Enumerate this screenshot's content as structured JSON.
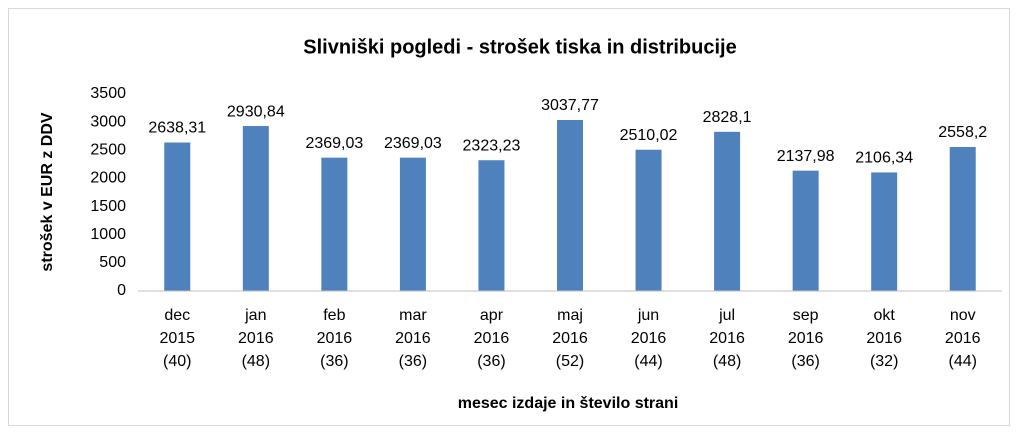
{
  "chart_data": {
    "type": "bar",
    "title": "Slivniški pogledi - strošek tiska in distribucije",
    "y_label": "strošek v EUR z DDV",
    "x_label": "mesec izdaje in število strani",
    "categories": [
      "dec\n2015\n(40)",
      "jan\n2016\n(48)",
      "feb\n2016\n(36)",
      "mar\n2016\n(36)",
      "apr\n2016\n(36)",
      "maj\n2016\n(52)",
      "jun\n2016\n(44)",
      "jul\n2016\n(48)",
      "sep\n2016\n(36)",
      "okt\n2016\n(32)",
      "nov\n2016\n(44)"
    ],
    "values": [
      2638.31,
      2930.84,
      2369.03,
      2369.03,
      2323.23,
      3037.77,
      2510.02,
      2828.1,
      2137.98,
      2106.34,
      2558.2
    ],
    "value_labels": [
      "2638,31",
      "2930,84",
      "2369,03",
      "2369,03",
      "2323,23",
      "3037,77",
      "2510,02",
      "2828,1",
      "2137,98",
      "2106,34",
      "2558,2"
    ],
    "color": "#4f81bd",
    "ylim": [
      0,
      3500
    ],
    "yticks": [
      0,
      500,
      1000,
      1500,
      2000,
      2500,
      3000,
      3500
    ],
    "grid": false
  }
}
